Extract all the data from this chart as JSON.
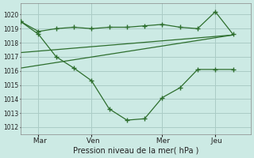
{
  "background_color": "#cceae4",
  "grid_color": "#aaccc6",
  "line_color": "#2d6e2d",
  "xlabel": "Pression niveau de la mer( hPa )",
  "ylim": [
    1011.5,
    1020.8
  ],
  "yticks": [
    1012,
    1013,
    1014,
    1015,
    1016,
    1017,
    1018,
    1019,
    1020
  ],
  "xtick_labels": [
    " Mar",
    " Ven",
    " Mer",
    " Jeu"
  ],
  "xtick_positions": [
    12,
    48,
    96,
    132
  ],
  "vline_x": [
    12,
    48,
    96,
    132
  ],
  "xlim": [
    0,
    156
  ],
  "series1_x": [
    0,
    12,
    24,
    36,
    48,
    60,
    72,
    84,
    96,
    108,
    120,
    132,
    144
  ],
  "series1_y": [
    1019.5,
    1018.6,
    1017.0,
    1016.2,
    1015.3,
    1013.3,
    1012.5,
    1012.6,
    1014.1,
    1014.8,
    1016.1,
    1016.1,
    1016.1
  ],
  "series2_x": [
    0,
    12,
    24,
    36,
    48,
    60,
    72,
    84,
    96,
    108,
    120,
    132,
    144
  ],
  "series2_y": [
    1019.5,
    1018.8,
    1019.0,
    1019.1,
    1019.0,
    1019.1,
    1019.1,
    1019.2,
    1019.3,
    1019.1,
    1019.0,
    1020.2,
    1018.6
  ],
  "trend1_x": [
    0,
    144
  ],
  "trend1_y": [
    1017.3,
    1018.55
  ],
  "trend2_x": [
    0,
    144
  ],
  "trend2_y": [
    1016.2,
    1018.55
  ]
}
